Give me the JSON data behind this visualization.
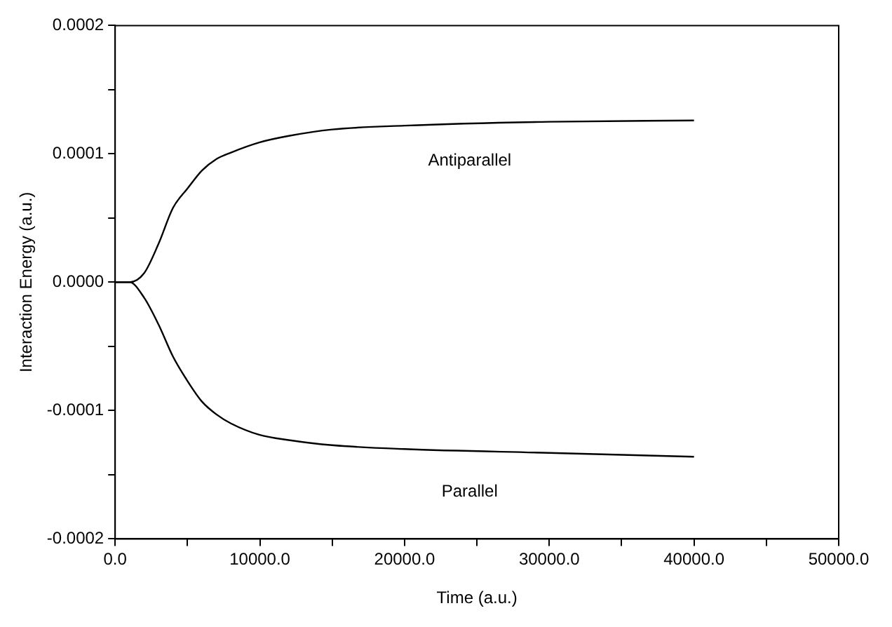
{
  "chart_data": {
    "type": "line",
    "xlabel": "Time (a.u.)",
    "ylabel": "Interaction Energy (a.u.)",
    "xlim": [
      0,
      50000
    ],
    "ylim": [
      -0.0002,
      0.0002
    ],
    "xticks": [
      {
        "value": 0,
        "label": "0.0"
      },
      {
        "value": 5000,
        "label": null
      },
      {
        "value": 10000,
        "label": "10000.0"
      },
      {
        "value": 15000,
        "label": null
      },
      {
        "value": 20000,
        "label": "20000.0"
      },
      {
        "value": 25000,
        "label": null
      },
      {
        "value": 30000,
        "label": "30000.0"
      },
      {
        "value": 35000,
        "label": null
      },
      {
        "value": 40000,
        "label": "40000.0"
      },
      {
        "value": 45000,
        "label": null
      },
      {
        "value": 50000,
        "label": "50000.0"
      }
    ],
    "yticks": [
      -0.0002,
      {
        "value": -0.00015,
        "label": null
      },
      -0.0001,
      {
        "value": -5e-05,
        "label": null
      },
      {
        "value": 0,
        "label": "0.0000"
      },
      {
        "value": 5e-05,
        "label": null
      },
      0.0001,
      {
        "value": 0.00015,
        "label": null
      },
      0.0002
    ],
    "grid": false,
    "legend": false,
    "marker": "none",
    "line_style": "solid",
    "series": [
      {
        "name": "Antiparallel",
        "color": "#000000",
        "x": [
          0,
          1000,
          2000,
          3000,
          4000,
          5000,
          6000,
          7000,
          8000,
          10000,
          12000,
          15000,
          20000,
          30000,
          40000
        ],
        "values": [
          0,
          0,
          7e-06,
          3e-05,
          5.8e-05,
          7.3e-05,
          8.7e-05,
          9.6e-05,
          0.000101,
          0.000109,
          0.000114,
          0.000119,
          0.000122,
          0.000125,
          0.000126
        ]
      },
      {
        "name": "Parallel",
        "color": "#000000",
        "x": [
          0,
          1000,
          2000,
          3000,
          4000,
          5000,
          6000,
          7000,
          8000,
          10000,
          12000,
          15000,
          20000,
          30000,
          40000
        ],
        "values": [
          0,
          0,
          -1.2e-05,
          -3.3e-05,
          -5.8e-05,
          -7.7e-05,
          -9.3e-05,
          -0.000103,
          -0.00011,
          -0.000119,
          -0.000123,
          -0.000127,
          -0.00013,
          -0.000133,
          -0.000136
        ]
      }
    ]
  }
}
